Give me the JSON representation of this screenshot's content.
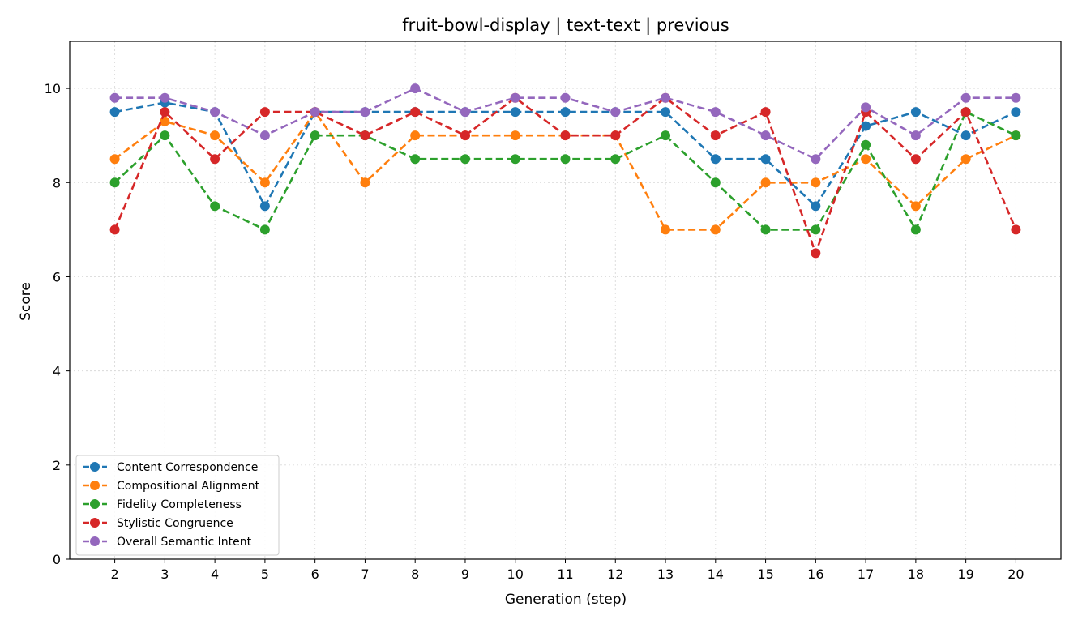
{
  "chart_data": {
    "type": "line",
    "title": "fruit-bowl-display | text-text | previous",
    "xlabel": "Generation (step)",
    "ylabel": "Score",
    "ylim": [
      0,
      11
    ],
    "yticks": [
      0,
      2,
      4,
      6,
      8,
      10
    ],
    "grid": true,
    "legend_position": "lower-left",
    "x": [
      2,
      3,
      4,
      5,
      6,
      7,
      8,
      9,
      10,
      11,
      12,
      13,
      14,
      15,
      16,
      17,
      18,
      19,
      20
    ],
    "series": [
      {
        "name": "Content Correspondence",
        "color": "#1f77b4",
        "values": [
          9.5,
          9.7,
          9.5,
          7.5,
          9.5,
          9.5,
          9.5,
          9.5,
          9.5,
          9.5,
          9.5,
          9.5,
          8.5,
          8.5,
          7.5,
          9.2,
          9.5,
          9.0,
          9.5
        ]
      },
      {
        "name": "Compositional Alignment",
        "color": "#ff7f0e",
        "values": [
          8.5,
          9.3,
          9.0,
          8.0,
          9.5,
          8.0,
          9.0,
          9.0,
          9.0,
          9.0,
          9.0,
          7.0,
          7.0,
          8.0,
          8.0,
          8.5,
          7.5,
          8.5,
          9.0
        ]
      },
      {
        "name": "Fidelity Completeness",
        "color": "#2ca02c",
        "values": [
          8.0,
          9.0,
          7.5,
          7.0,
          9.0,
          9.0,
          8.5,
          8.5,
          8.5,
          8.5,
          8.5,
          9.0,
          8.0,
          7.0,
          7.0,
          8.8,
          7.0,
          9.5,
          9.0
        ]
      },
      {
        "name": "Stylistic Congruence",
        "color": "#d62728",
        "values": [
          7.0,
          9.5,
          8.5,
          9.5,
          9.5,
          9.0,
          9.5,
          9.0,
          9.8,
          9.0,
          9.0,
          9.8,
          9.0,
          9.5,
          6.5,
          9.5,
          8.5,
          9.5,
          7.0
        ]
      },
      {
        "name": "Overall Semantic Intent",
        "color": "#9467bd",
        "values": [
          9.8,
          9.8,
          9.5,
          9.0,
          9.5,
          9.5,
          10.0,
          9.5,
          9.8,
          9.8,
          9.5,
          9.8,
          9.5,
          9.0,
          8.5,
          9.6,
          9.0,
          9.8,
          9.8
        ]
      }
    ]
  }
}
